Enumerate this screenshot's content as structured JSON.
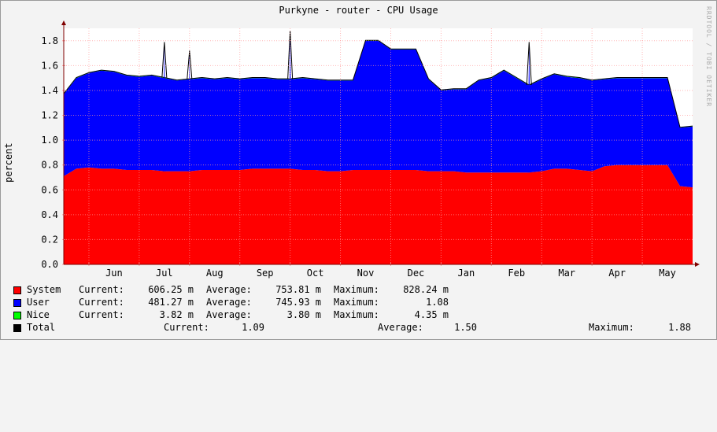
{
  "title": "Purkyne - router  - CPU Usage",
  "vertical_label": "percent",
  "watermark": "RRDTOOL / TOBI OETIKER",
  "colors": {
    "background": "#f3f3f3",
    "plot_background": "#ffffff",
    "grid": "#ff9999",
    "system": "#ff0000",
    "user": "#0000ff",
    "nice": "#00ff00",
    "total_line": "#000000",
    "arrow": "#800000"
  },
  "legend": [
    {
      "name": "System",
      "color": "#ff0000",
      "current": "606.25 m",
      "average": "753.81 m",
      "maximum": "828.24 m"
    },
    {
      "name": "User",
      "color": "#0000ff",
      "current": "481.27 m",
      "average": "745.93 m",
      "maximum": "1.08"
    },
    {
      "name": "Nice",
      "color": "#00ff00",
      "current": "3.82 m",
      "average": "3.80 m",
      "maximum": "4.35 m"
    }
  ],
  "total": {
    "name": "Total",
    "color": "#000000",
    "current": "1.09",
    "average": "1.50",
    "maximum": "1.88"
  },
  "labels": {
    "current": "Current:",
    "average": "Average:",
    "maximum": "Maximum:"
  },
  "chart_data": {
    "type": "area",
    "stacked": true,
    "title": "Purkyne - router  - CPU Usage",
    "ylabel": "percent",
    "ylim": [
      0,
      1.9
    ],
    "yticks": [
      "0.0",
      "0.2",
      "0.4",
      "0.6",
      "0.8",
      "1.0",
      "1.2",
      "1.4",
      "1.6",
      "1.8"
    ],
    "xticks": [
      "Jun",
      "Jul",
      "Aug",
      "Sep",
      "Oct",
      "Nov",
      "Dec",
      "Jan",
      "Feb",
      "Mar",
      "Apr",
      "May"
    ],
    "grid": true,
    "legend_position": "bottom",
    "x_unit": "months",
    "x": [
      0,
      0.25,
      0.5,
      0.75,
      1,
      1.25,
      1.5,
      1.75,
      2,
      2.25,
      2.5,
      2.75,
      3,
      3.25,
      3.5,
      3.75,
      4,
      4.25,
      4.5,
      4.75,
      5,
      5.25,
      5.5,
      5.75,
      6,
      6.25,
      6.5,
      6.75,
      7,
      7.25,
      7.5,
      7.75,
      8,
      8.25,
      8.5,
      8.75,
      9,
      9.25,
      9.5,
      9.75,
      10,
      10.25,
      10.5,
      10.75,
      11,
      11.25,
      11.5,
      11.75,
      12,
      12.25,
      12.5
    ],
    "series": [
      {
        "name": "System",
        "color": "#ff0000",
        "values": [
          0.71,
          0.77,
          0.78,
          0.77,
          0.77,
          0.76,
          0.76,
          0.76,
          0.75,
          0.75,
          0.75,
          0.76,
          0.76,
          0.76,
          0.76,
          0.77,
          0.77,
          0.77,
          0.77,
          0.76,
          0.76,
          0.75,
          0.75,
          0.76,
          0.76,
          0.76,
          0.76,
          0.76,
          0.76,
          0.75,
          0.75,
          0.75,
          0.74,
          0.74,
          0.74,
          0.74,
          0.74,
          0.74,
          0.75,
          0.77,
          0.77,
          0.76,
          0.75,
          0.79,
          0.8,
          0.8,
          0.8,
          0.8,
          0.8,
          0.63,
          0.62
        ]
      },
      {
        "name": "User",
        "color": "#0000ff",
        "values": [
          0.66,
          0.73,
          0.76,
          0.79,
          0.78,
          0.76,
          0.75,
          0.76,
          0.75,
          0.73,
          0.74,
          0.74,
          0.73,
          0.74,
          0.73,
          0.73,
          0.73,
          0.72,
          0.72,
          0.74,
          0.73,
          0.73,
          0.73,
          0.72,
          1.04,
          1.04,
          0.97,
          0.97,
          0.97,
          0.74,
          0.65,
          0.66,
          0.67,
          0.74,
          0.76,
          0.82,
          0.76,
          0.7,
          0.74,
          0.76,
          0.74,
          0.74,
          0.73,
          0.7,
          0.7,
          0.7,
          0.7,
          0.7,
          0.7,
          0.47,
          0.49
        ]
      },
      {
        "name": "Nice",
        "color": "#00ff00",
        "values": [
          0.004,
          0.004,
          0.004,
          0.004,
          0.004,
          0.004,
          0.004,
          0.004,
          0.004,
          0.004,
          0.004,
          0.004,
          0.004,
          0.004,
          0.004,
          0.004,
          0.004,
          0.004,
          0.004,
          0.004,
          0.004,
          0.004,
          0.004,
          0.004,
          0.004,
          0.004,
          0.004,
          0.004,
          0.004,
          0.004,
          0.004,
          0.004,
          0.004,
          0.004,
          0.004,
          0.004,
          0.004,
          0.004,
          0.004,
          0.004,
          0.004,
          0.004,
          0.004,
          0.004,
          0.004,
          0.004,
          0.004,
          0.004,
          0.004,
          0.004,
          0.004
        ]
      }
    ],
    "spikes": [
      {
        "x": 2.0,
        "total": 1.79
      },
      {
        "x": 2.5,
        "total": 1.72
      },
      {
        "x": 4.5,
        "total": 1.88
      },
      {
        "x": 9.25,
        "total": 1.79
      }
    ]
  }
}
